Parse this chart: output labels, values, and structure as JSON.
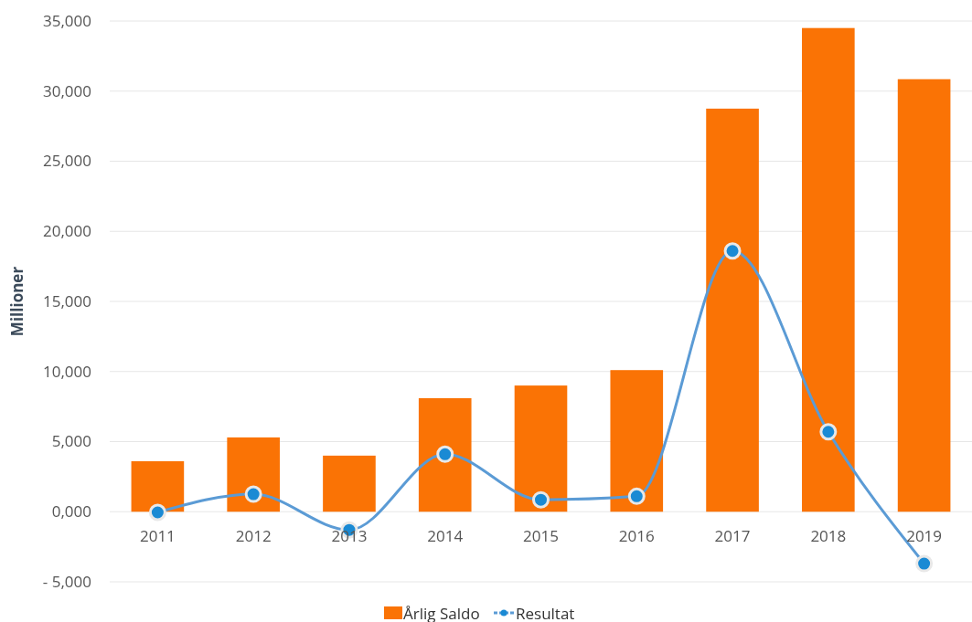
{
  "chart_data": {
    "type": "bar",
    "ylabel": "Millioner",
    "categories": [
      "2011",
      "2012",
      "2013",
      "2014",
      "2015",
      "2016",
      "2017",
      "2018",
      "2019"
    ],
    "series": [
      {
        "name": "Årlig Saldo",
        "color": "#fa7305",
        "values": [
          3600,
          5300,
          4000,
          8100,
          9000,
          10100,
          28750,
          34500,
          30850
        ]
      },
      {
        "name": "Resultat",
        "type": "line",
        "color": "#5b9bd5",
        "marker": "circle",
        "values": [
          -50,
          1250,
          -1300,
          4100,
          850,
          1100,
          18600,
          5700,
          -3700
        ]
      }
    ],
    "ylim": [
      -5000,
      35000
    ],
    "yticks": [
      {
        "value": -5000,
        "label": "- 5,000"
      },
      {
        "value": 0,
        "label": "0,000"
      },
      {
        "value": 5000,
        "label": "5,000"
      },
      {
        "value": 10000,
        "label": "10,000"
      },
      {
        "value": 15000,
        "label": "15,000"
      },
      {
        "value": 20000,
        "label": "20,000"
      },
      {
        "value": 25000,
        "label": "25,000"
      },
      {
        "value": 30000,
        "label": "30,000"
      },
      {
        "value": 35000,
        "label": "35,000"
      }
    ],
    "grid": "y",
    "legend": "bottom"
  }
}
